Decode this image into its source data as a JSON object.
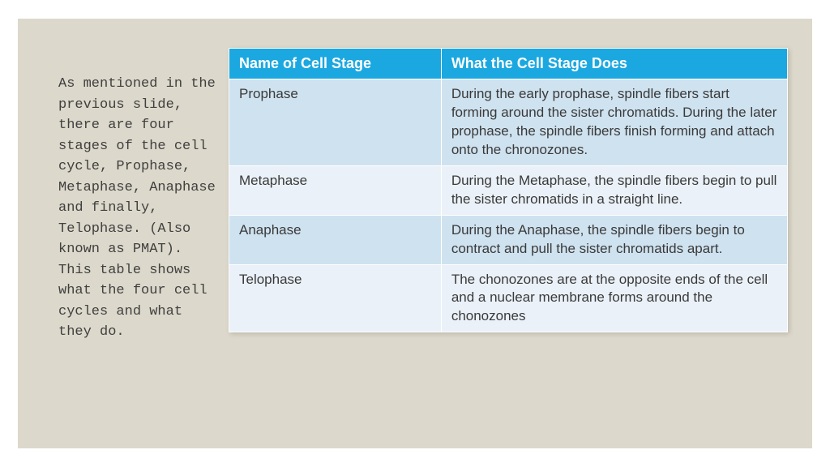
{
  "intro_text": "As mentioned in the previous slide, there are four stages of the cell cycle, Prophase, Metaphase, Anaphase and finally, Telophase. (Also known as PMAT). This table shows what the four cell cycles and what they do.",
  "table": {
    "columns": [
      {
        "label": "Name of Cell Stage",
        "width": "38%"
      },
      {
        "label": "What the Cell Stage Does",
        "width": "62%"
      }
    ],
    "rows": [
      {
        "name": "Prophase",
        "desc": "During the early prophase, spindle fibers start forming around the sister chromatids. During the later prophase, the spindle fibers finish forming and attach onto the chronozones."
      },
      {
        "name": "Metaphase",
        "desc": "During the Metaphase, the spindle fibers begin to pull the sister chromatids in a straight line."
      },
      {
        "name": "Anaphase",
        "desc": "During the Anaphase, the spindle fibers begin to contract and pull the sister chromatids apart."
      },
      {
        "name": "Telophase",
        "desc": "The chonozones are at the opposite ends of the cell and a nuclear membrane forms around the chonozones"
      }
    ],
    "header_bg": "#1ba8e0",
    "header_text_color": "#ffffff",
    "row_odd_bg": "#cfe2ef",
    "row_even_bg": "#eaf1f8",
    "border_color": "#ffffff",
    "font_family": "Century Gothic",
    "header_fontsize": 18,
    "cell_fontsize": 17,
    "text_color": "#3a3a3a"
  },
  "slide_bg": "#dcd8cb",
  "intro_font": "Courier New",
  "intro_fontsize": 17,
  "intro_color": "#404040"
}
